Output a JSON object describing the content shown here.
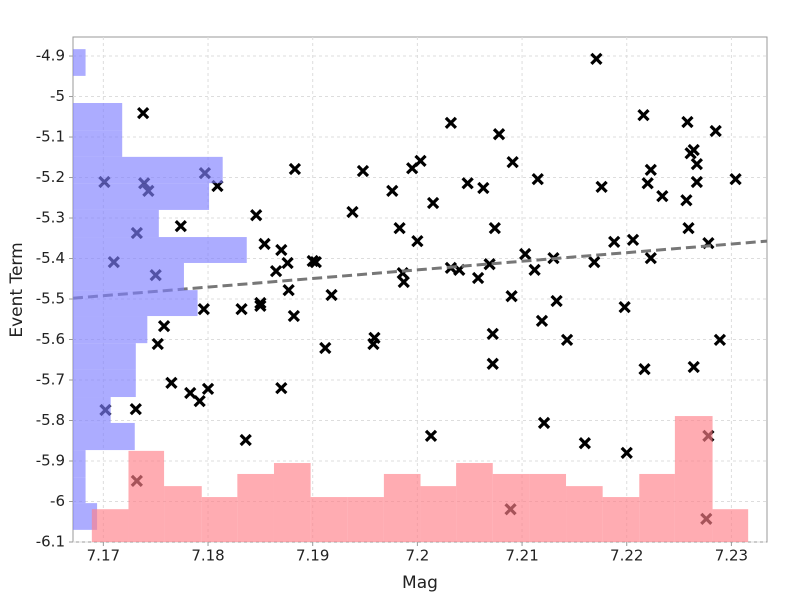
{
  "chart_data": {
    "type": "scatter",
    "xlabel": "Mag",
    "ylabel": "Event Term",
    "xlim": [
      7.1671,
      7.2334
    ],
    "ylim": [
      -6.1,
      -4.853
    ],
    "xticks": [
      7.17,
      7.18,
      7.19,
      7.2,
      7.21,
      7.22,
      7.23
    ],
    "yticks": [
      -4.9,
      -5,
      -5.1,
      -5.2,
      -5.3,
      -5.4,
      -5.5,
      -5.6,
      -5.7,
      -5.8,
      -5.9,
      -6,
      -6.1
    ],
    "grid": true,
    "series": [
      {
        "color": "#000000",
        "x": [
          7.2171,
          7.1738,
          7.1701,
          7.1739,
          7.1743,
          7.1797,
          7.1809,
          7.171,
          7.1732,
          7.175,
          7.1774,
          7.1758,
          7.1752,
          7.1765,
          7.1783,
          7.1792,
          7.18,
          7.1796,
          7.1702,
          7.1731,
          7.1732,
          7.1846,
          7.1854,
          7.1832,
          7.185,
          7.185,
          7.1865,
          7.187,
          7.1876,
          7.1877,
          7.1882,
          7.1883,
          7.187,
          7.1836,
          7.19,
          7.1903,
          7.1918,
          7.1912,
          7.1938,
          7.1948,
          7.1959,
          7.1958,
          7.1976,
          7.1983,
          7.1986,
          7.1987,
          7.1995,
          7.2003,
          7.2,
          7.2015,
          7.2013,
          7.2032,
          7.2032,
          7.204,
          7.2048,
          7.2063,
          7.2058,
          7.2069,
          7.2074,
          7.2072,
          7.2072,
          7.2078,
          7.2091,
          7.209,
          7.2089,
          7.2103,
          7.2115,
          7.2112,
          7.2119,
          7.213,
          7.2133,
          7.2121,
          7.2143,
          7.216,
          7.2169,
          7.2176,
          7.2188,
          7.2198,
          7.22,
          7.2206,
          7.2216,
          7.222,
          7.2223,
          7.2223,
          7.2217,
          7.2234,
          7.2257,
          7.2258,
          7.2261,
          7.2264,
          7.2267,
          7.2267,
          7.2259,
          7.2264,
          7.2278,
          7.2285,
          7.2278,
          7.2276,
          7.2304,
          7.2289
        ],
        "values": [
          -4.907,
          -5.041,
          -5.211,
          -5.214,
          -5.233,
          -5.189,
          -5.221,
          -5.409,
          -5.337,
          -5.441,
          -5.32,
          -5.567,
          -5.611,
          -5.707,
          -5.732,
          -5.752,
          -5.722,
          -5.525,
          -5.774,
          -5.772,
          -5.949,
          -5.293,
          -5.364,
          -5.525,
          -5.51,
          -5.517,
          -5.431,
          -5.379,
          -5.411,
          -5.478,
          -5.542,
          -5.179,
          -5.72,
          -5.848,
          -5.406,
          -5.409,
          -5.49,
          -5.621,
          -5.285,
          -5.184,
          -5.596,
          -5.611,
          -5.233,
          -5.325,
          -5.436,
          -5.458,
          -5.177,
          -5.159,
          -5.357,
          -5.263,
          -5.838,
          -5.065,
          -5.423,
          -5.428,
          -5.214,
          -5.226,
          -5.448,
          -5.414,
          -5.325,
          -5.586,
          -5.66,
          -5.093,
          -5.162,
          -5.493,
          -6.019,
          -5.389,
          -5.204,
          -5.428,
          -5.554,
          -5.399,
          -5.505,
          -5.806,
          -5.601,
          -5.856,
          -5.409,
          -5.223,
          -5.359,
          -5.52,
          -5.88,
          -5.354,
          -5.046,
          -5.214,
          -5.181,
          -5.399,
          -5.673,
          -5.246,
          -5.256,
          -5.063,
          -5.14,
          -5.132,
          -5.167,
          -5.211,
          -5.325,
          -5.668,
          -5.362,
          -5.085,
          -5.838,
          -6.043,
          -5.204,
          -5.601
        ]
      }
    ],
    "trend": {
      "color": "#777777",
      "x": [
        7.1671,
        7.2334
      ],
      "values": [
        -5.498,
        -5.357
      ]
    },
    "hist_y": {
      "color": "#8080ff",
      "bins": [
        -4.883,
        -4.949,
        -5.016,
        -5.083,
        -5.149,
        -5.214,
        -5.28,
        -5.347,
        -5.411,
        -5.478,
        -5.542,
        -5.609,
        -5.675,
        -5.742,
        -5.806,
        -5.873,
        -5.94,
        -6.004,
        -6.07
      ],
      "values": [
        7.1683,
        null,
        7.1718,
        7.1718,
        7.1814,
        7.1801,
        7.1753,
        7.1837,
        7.1777,
        7.179,
        7.1742,
        7.1731,
        7.1731,
        7.1707,
        7.173,
        7.1683,
        7.1683,
        7.1694
      ]
    },
    "hist_x": {
      "color": "#ff8088",
      "bins": [
        7.1689,
        7.1724,
        7.1758,
        7.1794,
        7.1828,
        7.1863,
        7.1898,
        7.1933,
        7.1968,
        7.2003,
        7.2037,
        7.2072,
        7.2107,
        7.2142,
        7.2177,
        7.2212,
        7.2246,
        7.2282,
        7.2316
      ],
      "values": [
        -6.019,
        -5.875,
        -5.962,
        -5.989,
        -5.932,
        -5.905,
        -5.989,
        -5.989,
        -5.932,
        -5.962,
        -5.905,
        -5.932,
        -5.932,
        -5.962,
        -5.989,
        -5.932,
        -5.789,
        -6.019
      ]
    }
  }
}
